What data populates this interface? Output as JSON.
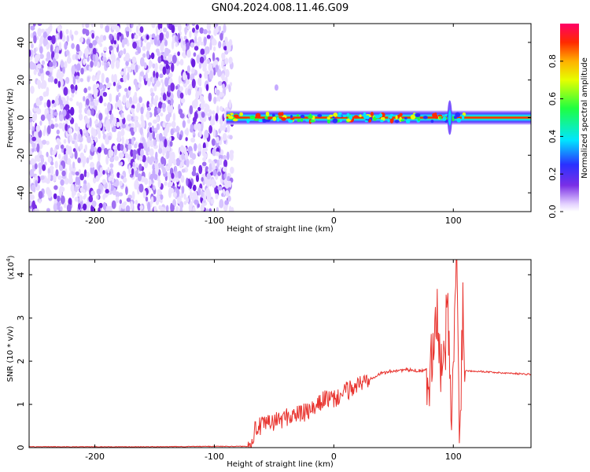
{
  "title": "GN04.2024.008.11.46.G09",
  "colors": {
    "snr_line": "#e8322d",
    "noise": "#7a2fe6",
    "axis": "#000000"
  },
  "chart_data": [
    {
      "type": "heatmap",
      "xlabel": "Height of straight line (km)",
      "ylabel": "Frequency (Hz)",
      "xlim": [
        -255,
        165
      ],
      "ylim": [
        -50,
        50
      ],
      "x_ticks": [
        -200,
        -100,
        0,
        100
      ],
      "x_tick_labels": [
        "-200",
        "-100",
        "0",
        "100"
      ],
      "y_ticks": [
        -40,
        -20,
        0,
        20,
        40
      ],
      "y_tick_labels": [
        "-40",
        "-20",
        "0",
        "20",
        "40"
      ],
      "colorbar": {
        "label": "Normalized spectral amplitude",
        "range": [
          0,
          1
        ],
        "ticks": [
          0,
          0.2,
          0.4,
          0.6,
          0.8
        ],
        "tick_labels": [
          "0.0",
          "0.2",
          "0.4",
          "0.6",
          "0.8"
        ],
        "colormap": "rainbow"
      },
      "noise_region_x": [
        -255,
        -85
      ],
      "signal_start_x": -90,
      "signal_frequency": 0,
      "grid": false
    },
    {
      "type": "line",
      "xlabel": "Height of straight line (km)",
      "ylabel": "SNR (10 * v/v)",
      "y_multiplier": "(x10",
      "y_multiplier_exp": "4",
      "y_multiplier_close": ")",
      "xlim": [
        -255,
        165
      ],
      "ylim": [
        0,
        4.35
      ],
      "x_ticks": [
        -200,
        -100,
        0,
        100
      ],
      "x_tick_labels": [
        "-200",
        "-100",
        "0",
        "100"
      ],
      "y_ticks": [
        0,
        1,
        2,
        3,
        4
      ],
      "y_tick_labels": [
        "0",
        "1",
        "2",
        "3",
        "4"
      ],
      "grid": false,
      "series": [
        {
          "x": [
            -255,
            -200,
            -150,
            -100,
            -72,
            -65,
            -55,
            -45,
            -35,
            -25,
            -15,
            -8,
            0,
            10,
            20,
            30,
            40,
            50,
            60,
            70,
            78,
            82,
            85,
            88,
            92,
            95,
            98,
            100,
            103,
            105,
            108,
            110,
            120,
            130,
            140,
            150,
            160,
            165
          ],
          "values": [
            0.02,
            0.02,
            0.02,
            0.03,
            0.03,
            0.45,
            0.55,
            0.65,
            0.75,
            0.8,
            0.9,
            1.15,
            1.1,
            1.3,
            1.45,
            1.6,
            1.72,
            1.78,
            1.8,
            1.78,
            1.8,
            1.9,
            3.6,
            2.0,
            1.7,
            3.4,
            0.5,
            2.0,
            4.35,
            0.3,
            3.2,
            1.78,
            1.77,
            1.75,
            1.73,
            1.72,
            1.7,
            1.7
          ]
        }
      ]
    }
  ]
}
